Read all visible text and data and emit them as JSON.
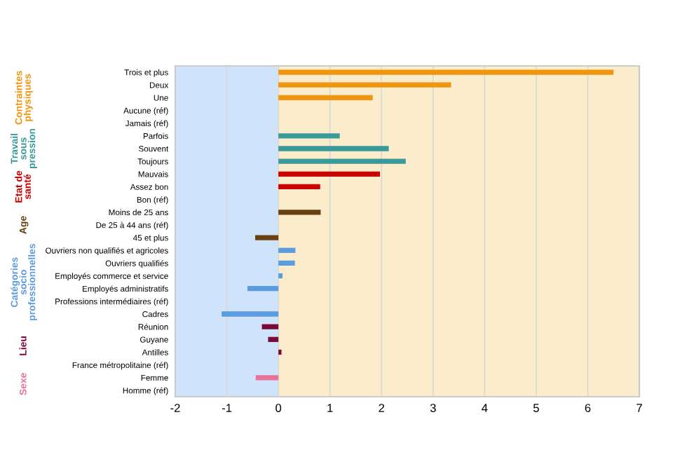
{
  "chart_data": {
    "type": "bar",
    "orientation": "horizontal",
    "categories": [
      "Trois et plus",
      "Deux",
      "Une",
      "Aucune (réf)",
      "Jamais (réf)",
      "Parfois",
      "Souvent",
      "Toujours",
      "Mauvais",
      "Assez bon",
      "Bon (réf)",
      "Moins de 25 ans",
      "De 25 à 44 ans (réf)",
      "45 et plus",
      "Ouvriers non qualifiés et agricoles",
      "Ouvriers qualifiés",
      "Employés commerce et service",
      "Employés administratifs",
      "Professions intermédiaires (réf)",
      "Cadres",
      "Réunion",
      "Guyane",
      "Antilles",
      "France métropolitaine (réf)",
      "Femme",
      "Homme (réf)"
    ],
    "series": [
      {
        "name": "Contraintes physiques",
        "color": "#f0950f",
        "values": [
          6.5,
          3.35,
          1.83,
          null,
          null,
          null,
          null,
          null,
          null,
          null,
          null,
          null,
          null,
          null,
          null,
          null,
          null,
          null,
          null,
          null,
          null,
          null,
          null,
          null,
          null,
          null
        ]
      },
      {
        "name": "Travail sous pression",
        "color": "#3a9a9a",
        "values": [
          null,
          null,
          null,
          null,
          null,
          1.19,
          2.14,
          2.47,
          null,
          null,
          null,
          null,
          null,
          null,
          null,
          null,
          null,
          null,
          null,
          null,
          null,
          null,
          null,
          null,
          null,
          null
        ]
      },
      {
        "name": "Etat de santé",
        "color": "#cc0000",
        "values": [
          null,
          null,
          null,
          null,
          null,
          null,
          null,
          null,
          1.97,
          0.81,
          null,
          null,
          null,
          null,
          null,
          null,
          null,
          null,
          null,
          null,
          null,
          null,
          null,
          null,
          null,
          null
        ]
      },
      {
        "name": "Age",
        "color": "#6b3f10",
        "values": [
          null,
          null,
          null,
          null,
          null,
          null,
          null,
          null,
          null,
          null,
          null,
          0.82,
          null,
          -0.45,
          null,
          null,
          null,
          null,
          null,
          null,
          null,
          null,
          null,
          null,
          null,
          null
        ]
      },
      {
        "name": "Catégories socio professionnelles",
        "color": "#5b9be0",
        "values": [
          null,
          null,
          null,
          null,
          null,
          null,
          null,
          null,
          null,
          null,
          null,
          null,
          null,
          null,
          0.33,
          0.32,
          0.08,
          -0.6,
          null,
          -1.1,
          null,
          null,
          null,
          null,
          null,
          null
        ]
      },
      {
        "name": "Lieu",
        "color": "#7a0a3a",
        "values": [
          null,
          null,
          null,
          null,
          null,
          null,
          null,
          null,
          null,
          null,
          null,
          null,
          null,
          null,
          null,
          null,
          null,
          null,
          null,
          null,
          -0.32,
          -0.2,
          0.06,
          null,
          null,
          null
        ]
      },
      {
        "name": "Sexe",
        "color": "#e8739a",
        "values": [
          null,
          null,
          null,
          null,
          null,
          null,
          null,
          null,
          null,
          null,
          null,
          null,
          null,
          null,
          null,
          null,
          null,
          null,
          null,
          null,
          null,
          null,
          null,
          null,
          -0.44,
          null
        ]
      }
    ],
    "xlim": [
      -2,
      7
    ],
    "xticks": [
      -2,
      -1,
      0,
      1,
      2,
      3,
      4,
      5,
      6,
      7
    ],
    "grid": "x",
    "bands": [
      {
        "axis": "x",
        "from": -2,
        "to": 0,
        "color": "#cfe4fa"
      },
      {
        "axis": "x",
        "from": 0,
        "to": 7,
        "color": "#fbeccc"
      }
    ]
  }
}
